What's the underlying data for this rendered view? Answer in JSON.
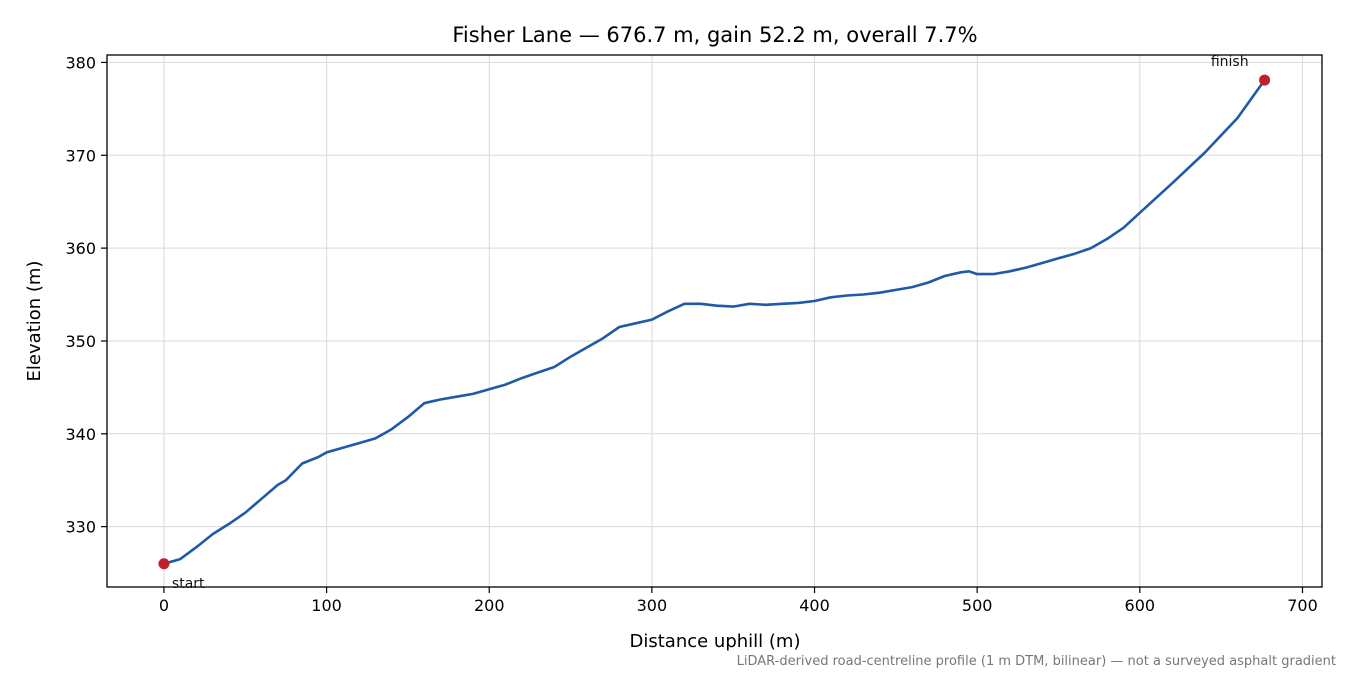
{
  "chart_data": {
    "type": "line",
    "title": "Fisher Lane — 676.7 m, gain 52.2 m, overall 7.7%",
    "xlabel": "Distance uphill (m)",
    "ylabel": "Elevation (m)",
    "xlim": [
      -35,
      712
    ],
    "ylim": [
      323.5,
      380.8
    ],
    "xticks": [
      0,
      100,
      200,
      300,
      400,
      500,
      600,
      700
    ],
    "yticks": [
      330,
      340,
      350,
      360,
      370,
      380
    ],
    "grid": true,
    "caption": "LiDAR-derived road-centreline profile (1 m DTM, bilinear) — not a surveyed asphalt gradient",
    "colors": {
      "line": "#1f5aa8",
      "marker": "#c0202c",
      "grid": "#d9d9d9"
    },
    "series": [
      {
        "x": [
          0,
          10,
          20,
          30,
          40,
          50,
          60,
          70,
          75,
          85,
          95,
          100,
          110,
          120,
          130,
          140,
          150,
          160,
          165,
          170,
          180,
          190,
          200,
          210,
          220,
          230,
          240,
          250,
          260,
          270,
          280,
          290,
          300,
          310,
          320,
          330,
          340,
          350,
          360,
          370,
          380,
          390,
          400,
          410,
          420,
          430,
          440,
          450,
          460,
          470,
          480,
          490,
          495,
          500,
          510,
          520,
          530,
          540,
          550,
          560,
          570,
          580,
          590,
          600,
          620,
          640,
          660,
          676.7
        ],
        "y": [
          326.0,
          326.5,
          327.8,
          329.2,
          330.3,
          331.5,
          333.0,
          334.5,
          335.0,
          336.8,
          337.5,
          338.0,
          338.5,
          339.0,
          339.5,
          340.5,
          341.8,
          343.3,
          343.5,
          343.7,
          344.0,
          344.3,
          344.8,
          345.3,
          346.0,
          346.6,
          347.2,
          348.3,
          349.3,
          350.3,
          351.5,
          351.9,
          352.3,
          353.2,
          354.0,
          354.0,
          353.8,
          353.7,
          354.0,
          353.9,
          354.0,
          354.1,
          354.3,
          354.7,
          354.9,
          355.0,
          355.2,
          355.5,
          355.8,
          356.3,
          357.0,
          357.4,
          357.5,
          357.2,
          357.2,
          357.5,
          357.9,
          358.4,
          358.9,
          359.4,
          360.0,
          361.0,
          362.2,
          363.8,
          367.0,
          370.3,
          374.0,
          378.1
        ]
      }
    ],
    "annotations": [
      {
        "text": "start",
        "x": 0,
        "y": 326.0
      },
      {
        "text": "finish",
        "x": 676.7,
        "y": 378.1
      }
    ]
  }
}
